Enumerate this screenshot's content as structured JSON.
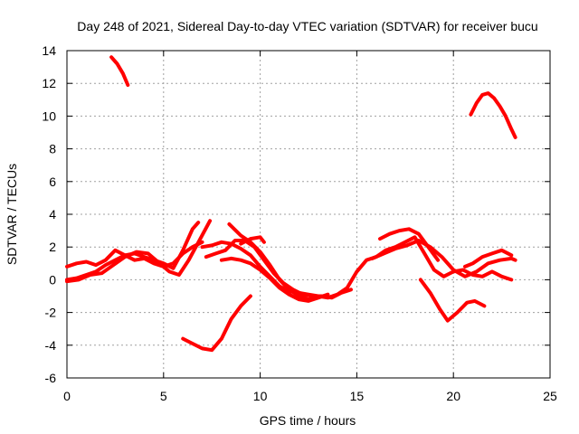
{
  "chart_data": {
    "type": "line",
    "title": "Day 248 of 2021, Sidereal Day-to-day VTEC variation (SDTVAR) for receiver bucu",
    "xlabel": "GPS time / hours",
    "ylabel": "SDTVAR / TECUs",
    "xlim": [
      0,
      25
    ],
    "ylim": [
      -6,
      14
    ],
    "xticks": [
      0,
      5,
      10,
      15,
      20,
      25
    ],
    "yticks": [
      -6,
      -4,
      -2,
      0,
      2,
      4,
      6,
      8,
      10,
      12,
      14
    ],
    "grid": true,
    "color": "#ff0000",
    "series": [
      {
        "name": "s1",
        "x": [
          2.3,
          2.6,
          2.9,
          3.15
        ],
        "y": [
          13.6,
          13.2,
          12.6,
          11.9
        ]
      },
      {
        "name": "s2",
        "x": [
          20.9,
          21.2,
          21.5,
          21.8,
          22.1,
          22.4,
          22.7,
          23.0,
          23.2
        ],
        "y": [
          10.1,
          10.8,
          11.3,
          11.4,
          11.1,
          10.6,
          10.0,
          9.2,
          8.7
        ]
      },
      {
        "name": "s3",
        "x": [
          0.0,
          0.5,
          1.0,
          1.5,
          2.0,
          2.5,
          3.0,
          3.5,
          4.0,
          4.5,
          5.0,
          5.5,
          6.0,
          6.5,
          7.0
        ],
        "y": [
          0.8,
          1.0,
          1.1,
          0.9,
          1.2,
          1.8,
          1.5,
          1.2,
          1.3,
          1.0,
          0.8,
          1.0,
          1.6,
          2.0,
          2.3
        ]
      },
      {
        "name": "s4",
        "x": [
          0.0,
          0.5,
          1.0,
          1.5,
          2.0,
          2.5,
          3.0,
          3.5,
          4.0,
          4.5,
          5.0,
          5.5,
          6.0,
          6.5,
          6.8
        ],
        "y": [
          0.0,
          0.1,
          0.3,
          0.5,
          0.9,
          1.2,
          1.5,
          1.6,
          1.4,
          1.2,
          1.0,
          0.7,
          1.8,
          3.1,
          3.5
        ]
      },
      {
        "name": "s5",
        "x": [
          0.0,
          0.6,
          1.2,
          1.8,
          2.4,
          3.0,
          3.6,
          4.2,
          4.8,
          5.3,
          5.8,
          6.3,
          6.9,
          7.4
        ],
        "y": [
          -0.1,
          0.0,
          0.3,
          0.4,
          0.9,
          1.4,
          1.7,
          1.6,
          1.0,
          0.5,
          0.3,
          1.2,
          2.5,
          3.6
        ]
      },
      {
        "name": "s6",
        "x": [
          7.0,
          7.5,
          8.0,
          8.5,
          9.0,
          9.5,
          10.0,
          10.5,
          11.0,
          11.5,
          12.0,
          12.5,
          13.0,
          13.5,
          14.0,
          14.5,
          15.0,
          15.5,
          16.0,
          16.5,
          17.0,
          17.5,
          18.0,
          18.5,
          19.0,
          19.5,
          20.0,
          20.5,
          21.0,
          21.5,
          22.0,
          22.5,
          23.0
        ],
        "y": [
          2.0,
          2.1,
          2.3,
          2.2,
          1.9,
          1.5,
          0.8,
          0.2,
          -0.4,
          -0.7,
          -0.8,
          -0.9,
          -1.0,
          -1.1,
          -0.9,
          -0.5,
          0.5,
          1.2,
          1.4,
          1.8,
          2.0,
          2.3,
          2.6,
          1.6,
          0.6,
          0.2,
          0.5,
          0.6,
          0.3,
          0.2,
          0.5,
          0.2,
          0.0
        ]
      },
      {
        "name": "s7",
        "x": [
          7.2,
          7.7,
          8.2,
          8.7,
          9.2,
          9.7,
          10.2,
          10.7,
          11.2,
          11.7,
          12.2,
          12.7,
          13.2,
          13.7,
          14.2,
          14.7
        ],
        "y": [
          1.4,
          1.6,
          1.8,
          2.4,
          2.4,
          2.0,
          1.2,
          0.4,
          -0.2,
          -0.6,
          -0.9,
          -1.0,
          -1.0,
          -1.1,
          -0.8,
          -0.6
        ]
      },
      {
        "name": "s8",
        "x": [
          8.4,
          9.0,
          9.5,
          10.0,
          10.5,
          11.0,
          11.5,
          12.0,
          12.5,
          13.0
        ],
        "y": [
          3.4,
          2.7,
          2.3,
          1.7,
          0.9,
          0.0,
          -0.6,
          -1.0,
          -1.2,
          -1.0
        ]
      },
      {
        "name": "s9",
        "x": [
          8.0,
          8.5,
          9.0,
          9.5,
          10.0,
          10.5,
          11.0,
          11.5,
          12.0,
          12.5,
          13.0,
          13.5
        ],
        "y": [
          1.2,
          1.3,
          1.2,
          1.0,
          0.6,
          0.1,
          -0.5,
          -0.9,
          -1.2,
          -1.3,
          -1.1,
          -0.9
        ]
      },
      {
        "name": "s10",
        "x": [
          9.0,
          9.5,
          10.0,
          10.2
        ],
        "y": [
          2.2,
          2.5,
          2.6,
          2.3
        ]
      },
      {
        "name": "s11",
        "x": [
          6.0,
          6.5,
          7.0,
          7.5,
          8.0,
          8.5,
          9.0,
          9.5
        ],
        "y": [
          -3.6,
          -3.9,
          -4.2,
          -4.3,
          -3.6,
          -2.4,
          -1.6,
          -1.0
        ]
      },
      {
        "name": "s12",
        "x": [
          16.2,
          16.7,
          17.2,
          17.7,
          18.2,
          18.7,
          19.2
        ],
        "y": [
          2.5,
          2.8,
          3.0,
          3.1,
          2.8,
          2.0,
          1.2
        ]
      },
      {
        "name": "s13",
        "x": [
          15.8,
          16.4,
          17.0,
          17.6,
          18.2,
          18.8,
          19.4,
          20.0,
          20.6,
          21.2,
          21.8,
          22.4,
          23.0,
          23.2
        ],
        "y": [
          1.3,
          1.6,
          1.9,
          2.1,
          2.4,
          2.0,
          1.4,
          0.6,
          0.2,
          0.5,
          1.0,
          1.2,
          1.3,
          1.2
        ]
      },
      {
        "name": "s14",
        "x": [
          20.6,
          21.0,
          21.5,
          22.0,
          22.5,
          23.0
        ],
        "y": [
          0.8,
          1.0,
          1.4,
          1.6,
          1.8,
          1.5
        ]
      },
      {
        "name": "s15",
        "x": [
          18.3,
          18.8,
          19.3,
          19.7,
          20.2,
          20.7,
          21.1,
          21.6
        ],
        "y": [
          0.0,
          -0.8,
          -1.8,
          -2.5,
          -2.0,
          -1.4,
          -1.3,
          -1.6
        ]
      }
    ]
  }
}
